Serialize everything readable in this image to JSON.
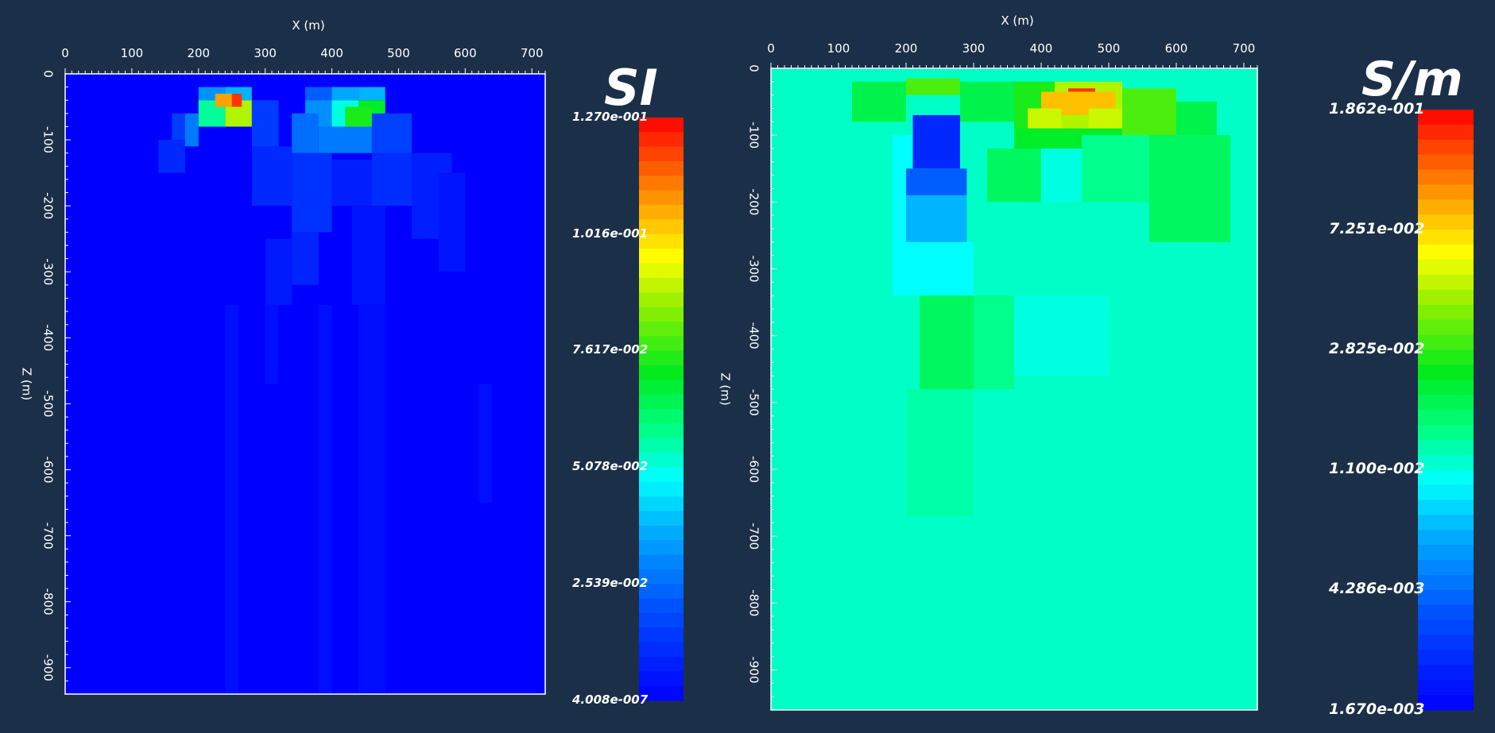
{
  "chart_data": [
    {
      "type": "heatmap",
      "title": "",
      "xlabel": "X (m)",
      "ylabel": "Z (m)",
      "xlim": [
        0,
        720
      ],
      "ylim": [
        -940,
        0
      ],
      "x_ticks": [
        "0",
        "100",
        "200",
        "300",
        "400",
        "500",
        "600",
        "700"
      ],
      "y_ticks": [
        "0",
        "-100",
        "-200",
        "-300",
        "-400",
        "-500",
        "-600",
        "-700",
        "-800",
        "-900"
      ],
      "colorbar": {
        "unit": "SI",
        "labels": [
          "1.270e-001",
          "1.016e-001",
          "7.617e-002",
          "5.078e-002",
          "2.539e-002",
          "4.008e-007"
        ],
        "min": 4.008e-07,
        "max": 0.127,
        "background_value": 0.0
      },
      "cells": [
        [
          200,
          240,
          -20,
          -40,
          0.25
        ],
        [
          240,
          280,
          -20,
          -40,
          0.3
        ],
        [
          200,
          240,
          -40,
          -80,
          0.45
        ],
        [
          240,
          280,
          -40,
          -80,
          0.7
        ],
        [
          225,
          250,
          -30,
          -50,
          0.85
        ],
        [
          250,
          265,
          -30,
          -50,
          0.95
        ],
        [
          360,
          400,
          -20,
          -40,
          0.18
        ],
        [
          400,
          440,
          -20,
          -40,
          0.28
        ],
        [
          440,
          480,
          -20,
          -40,
          0.3
        ],
        [
          360,
          400,
          -40,
          -80,
          0.25
        ],
        [
          400,
          440,
          -40,
          -80,
          0.4
        ],
        [
          440,
          480,
          -40,
          -80,
          0.55
        ],
        [
          420,
          460,
          -50,
          -80,
          0.58
        ],
        [
          180,
          200,
          -60,
          -110,
          0.22
        ],
        [
          160,
          180,
          -60,
          -100,
          0.12
        ],
        [
          280,
          320,
          -40,
          -110,
          0.12
        ],
        [
          340,
          380,
          -60,
          -120,
          0.2
        ],
        [
          380,
          460,
          -80,
          -120,
          0.22
        ],
        [
          460,
          520,
          -60,
          -130,
          0.13
        ],
        [
          140,
          180,
          -100,
          -150,
          0.08
        ],
        [
          280,
          340,
          -110,
          -200,
          0.08
        ],
        [
          340,
          400,
          -120,
          -240,
          0.1
        ],
        [
          400,
          460,
          -130,
          -200,
          0.06
        ],
        [
          460,
          520,
          -120,
          -200,
          0.09
        ],
        [
          520,
          580,
          -120,
          -250,
          0.06
        ],
        [
          300,
          340,
          -250,
          -350,
          0.05
        ],
        [
          340,
          380,
          -240,
          -320,
          0.07
        ],
        [
          430,
          480,
          -200,
          -350,
          0.04
        ],
        [
          560,
          600,
          -150,
          -300,
          0.04
        ],
        [
          240,
          260,
          -350,
          -940,
          0.03
        ],
        [
          300,
          320,
          -350,
          -470,
          0.03
        ],
        [
          380,
          400,
          -350,
          -940,
          0.03
        ],
        [
          440,
          480,
          -350,
          -940,
          0.025
        ],
        [
          620,
          640,
          -470,
          -650,
          0.03
        ]
      ]
    },
    {
      "type": "heatmap",
      "title": "",
      "xlabel": "X (m)",
      "ylabel": "Z (m)",
      "xlim": [
        0,
        720
      ],
      "ylim": [
        -960,
        0
      ],
      "x_ticks": [
        "0",
        "100",
        "200",
        "300",
        "400",
        "500",
        "600",
        "700"
      ],
      "y_ticks": [
        "0",
        "-100",
        "-200",
        "-300",
        "-400",
        "-500",
        "-600",
        "-700",
        "-800",
        "-900"
      ],
      "colorbar": {
        "unit": "S/m",
        "labels": [
          "1.862e-001",
          "7.251e-002",
          "2.825e-002",
          "1.100e-002",
          "4.286e-003",
          "1.670e-003"
        ],
        "min": 0.00167,
        "max": 0.1862,
        "background_value": 0.42
      },
      "cells": [
        [
          120,
          200,
          -20,
          -80,
          0.52
        ],
        [
          200,
          280,
          -15,
          -40,
          0.62
        ],
        [
          280,
          360,
          -20,
          -80,
          0.52
        ],
        [
          360,
          420,
          -20,
          -100,
          0.58
        ],
        [
          420,
          520,
          -20,
          -100,
          0.7
        ],
        [
          520,
          600,
          -30,
          -100,
          0.62
        ],
        [
          600,
          660,
          -50,
          -120,
          0.52
        ],
        [
          440,
          480,
          -30,
          -50,
          0.95
        ],
        [
          400,
          510,
          -35,
          -70,
          0.82
        ],
        [
          380,
          430,
          -60,
          -90,
          0.72
        ],
        [
          470,
          520,
          -60,
          -90,
          0.72
        ],
        [
          360,
          520,
          -90,
          -140,
          0.55
        ],
        [
          560,
          680,
          -100,
          -260,
          0.5
        ],
        [
          320,
          400,
          -120,
          -200,
          0.5
        ],
        [
          400,
          460,
          -120,
          -200,
          0.4
        ],
        [
          460,
          560,
          -100,
          -200,
          0.46
        ],
        [
          180,
          230,
          -100,
          -300,
          0.38
        ],
        [
          210,
          280,
          -70,
          -150,
          0.08
        ],
        [
          200,
          290,
          -150,
          -190,
          0.18
        ],
        [
          220,
          270,
          -200,
          -260,
          0.28
        ],
        [
          200,
          290,
          -190,
          -260,
          0.3
        ],
        [
          180,
          300,
          -260,
          -340,
          0.38
        ],
        [
          220,
          300,
          -340,
          -480,
          0.5
        ],
        [
          300,
          360,
          -340,
          -480,
          0.46
        ],
        [
          360,
          500,
          -340,
          -460,
          0.4
        ],
        [
          200,
          300,
          -480,
          -670,
          0.44
        ]
      ]
    }
  ]
}
